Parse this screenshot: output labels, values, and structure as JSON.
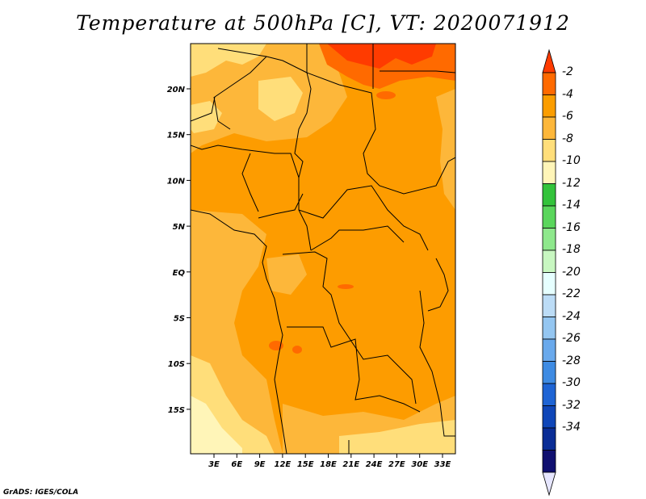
{
  "title": "Temperature at 500hPa [C], VT: 2020071912",
  "credit": "GrADS: IGES/COLA",
  "lat_labels": [
    "20N",
    "15N",
    "10N",
    "5N",
    "EQ",
    "5S",
    "10S",
    "15S"
  ],
  "lon_labels": [
    "3E",
    "6E",
    "9E",
    "12E",
    "15E",
    "18E",
    "21E",
    "24E",
    "27E",
    "30E",
    "33E"
  ],
  "colorbar": {
    "labels": [
      "-2",
      "-4",
      "-6",
      "-8",
      "-10",
      "-12",
      "-14",
      "-16",
      "-18",
      "-20",
      "-22",
      "-24",
      "-26",
      "-28",
      "-30",
      "-32",
      "-34"
    ],
    "colors": [
      "#ff3b00",
      "#ff6a00",
      "#fb9d00",
      "#fdb73a",
      "#ffde7a",
      "#fff5b8",
      "#33c33b",
      "#5ad65c",
      "#8ee88c",
      "#c8f7c1",
      "#e6ffff",
      "#bcdcf6",
      "#94c6f1",
      "#69a9ec",
      "#3e8be3",
      "#1e64d4",
      "#0f46b8",
      "#0a2d96",
      "#101070",
      "#e6e6ff"
    ]
  },
  "palette": {
    "warm": "#fd9c00",
    "warmer": "#ff6a00",
    "hot": "#ff3b00",
    "mild": "#fdb73a",
    "cool": "#ffde7a",
    "pale": "#fff5b8"
  }
}
